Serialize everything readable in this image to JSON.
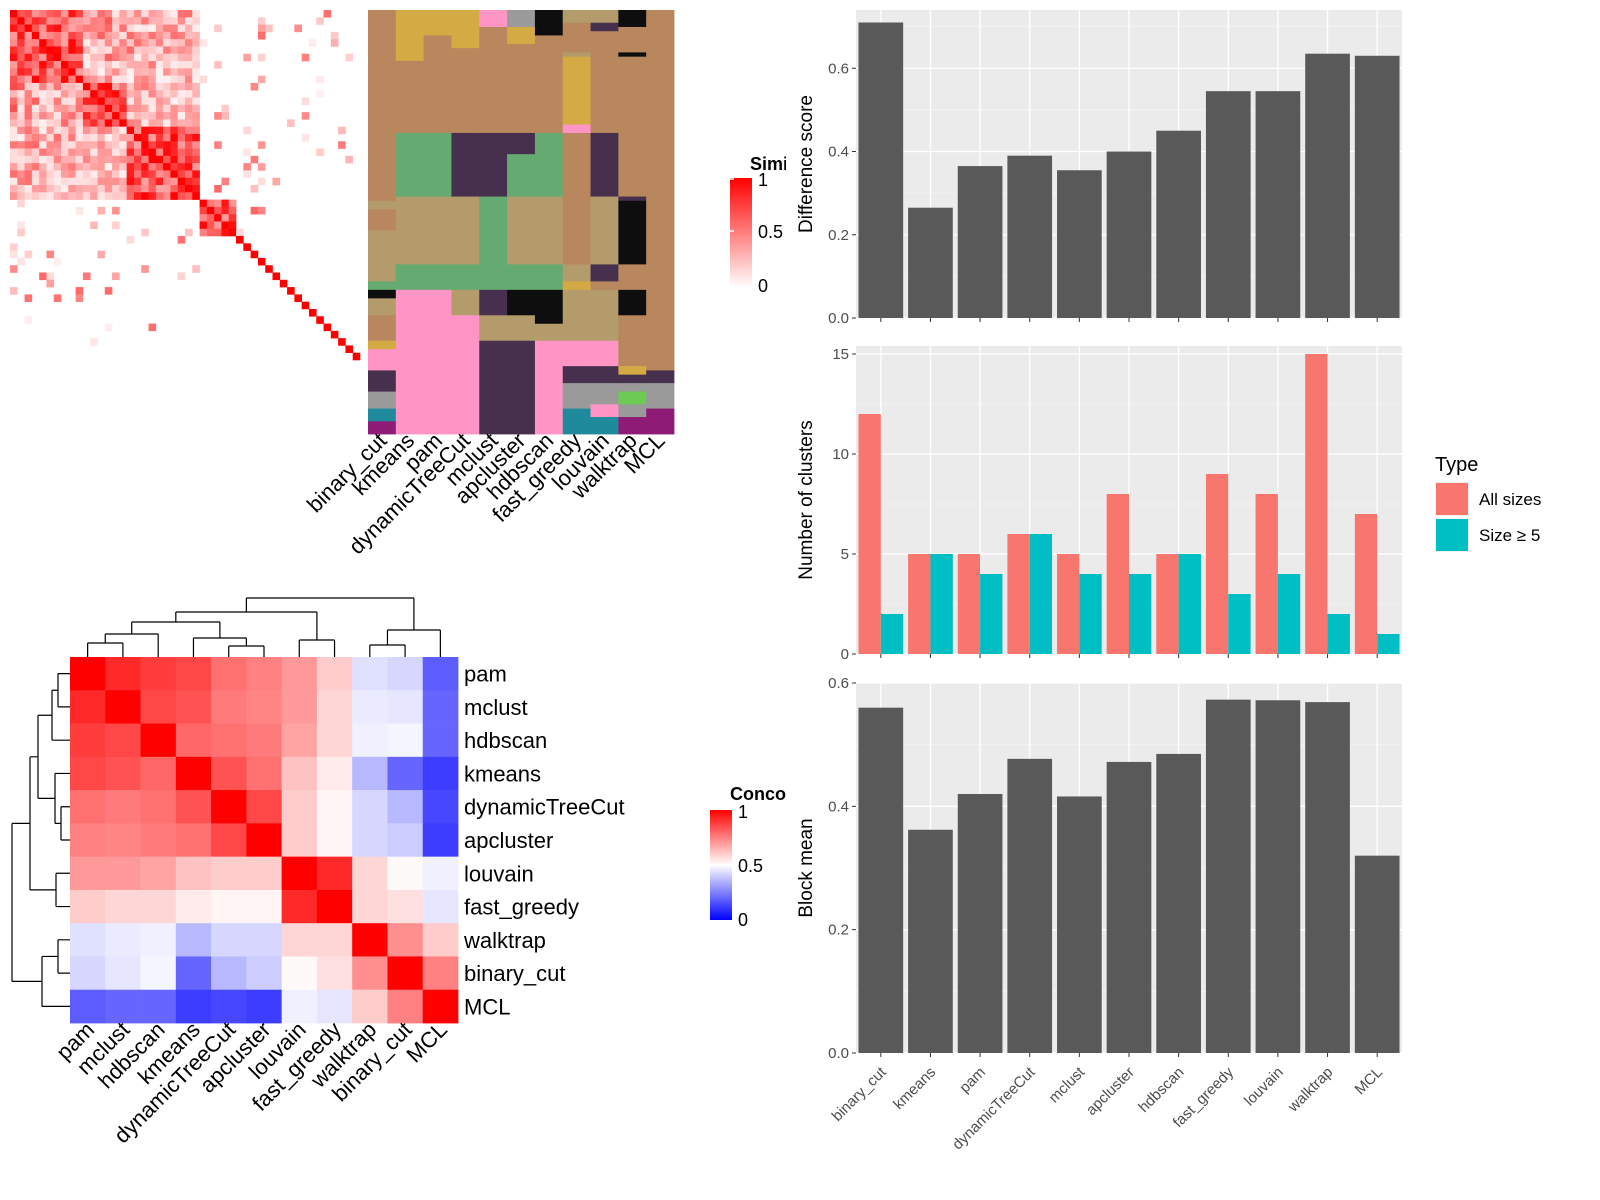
{
  "methods": [
    "binary_cut",
    "kmeans",
    "pam",
    "dynamicTreeCut",
    "mclust",
    "apcluster",
    "hdbscan",
    "fast_greedy",
    "louvain",
    "walktrap",
    "MCL"
  ],
  "similarity_heatmap": {
    "legend_title": "Similarity",
    "legend_ticks": [
      "1",
      "0.5",
      "0"
    ],
    "high_color": "#FF0000",
    "low_color": "#FFFFFF"
  },
  "cluster_assignment": {
    "columns": [
      "binary_cut",
      "kmeans",
      "pam",
      "dynamicTreeCut",
      "mclust",
      "apcluster",
      "hdbscan",
      "fast_greedy",
      "louvain",
      "walktrap",
      "MCL"
    ],
    "colors": {
      "tan": "#B8875E",
      "mustard": "#D4AA45",
      "khaki": "#B39B6B",
      "green": "#65AA71",
      "purple": "#46304D",
      "pink": "#FF95C5",
      "black": "#0E0E0E",
      "gray": "#9A9A9A",
      "teal": "#1E8A9C",
      "magenta": "#8E1C76",
      "lime": "#6BCB53"
    }
  },
  "concordance_heatmap": {
    "legend_title": "Concordance",
    "legend_ticks": [
      "1",
      "0.5",
      "0"
    ],
    "order": [
      "pam",
      "mclust",
      "hdbscan",
      "kmeans",
      "dynamicTreeCut",
      "apcluster",
      "louvain",
      "fast_greedy",
      "walktrap",
      "binary_cut",
      "MCL"
    ],
    "matrix": [
      [
        1.0,
        0.92,
        0.88,
        0.86,
        0.78,
        0.75,
        0.7,
        0.6,
        0.44,
        0.42,
        0.18
      ],
      [
        0.92,
        1.0,
        0.86,
        0.84,
        0.76,
        0.74,
        0.7,
        0.58,
        0.46,
        0.45,
        0.2
      ],
      [
        0.88,
        0.86,
        1.0,
        0.8,
        0.78,
        0.76,
        0.68,
        0.58,
        0.47,
        0.48,
        0.2
      ],
      [
        0.86,
        0.84,
        0.8,
        1.0,
        0.84,
        0.78,
        0.62,
        0.54,
        0.36,
        0.2,
        0.12
      ],
      [
        0.78,
        0.76,
        0.78,
        0.84,
        1.0,
        0.86,
        0.6,
        0.52,
        0.42,
        0.36,
        0.14
      ],
      [
        0.75,
        0.74,
        0.76,
        0.78,
        0.86,
        1.0,
        0.6,
        0.52,
        0.42,
        0.4,
        0.12
      ],
      [
        0.7,
        0.7,
        0.68,
        0.62,
        0.6,
        0.6,
        1.0,
        0.92,
        0.58,
        0.51,
        0.47
      ],
      [
        0.6,
        0.58,
        0.58,
        0.54,
        0.52,
        0.52,
        0.92,
        1.0,
        0.58,
        0.56,
        0.45
      ],
      [
        0.44,
        0.46,
        0.47,
        0.36,
        0.42,
        0.42,
        0.58,
        0.58,
        1.0,
        0.72,
        0.6
      ],
      [
        0.42,
        0.45,
        0.48,
        0.2,
        0.36,
        0.4,
        0.51,
        0.56,
        0.72,
        1.0,
        0.75
      ],
      [
        0.18,
        0.2,
        0.2,
        0.12,
        0.14,
        0.12,
        0.47,
        0.45,
        0.6,
        0.75,
        1.0
      ]
    ],
    "high_color": "#FF0000",
    "mid_color": "#FFFFFF",
    "low_color": "#0000FF"
  },
  "chart_data": [
    {
      "type": "bar",
      "categories": [
        "binary_cut",
        "kmeans",
        "pam",
        "dynamicTreeCut",
        "mclust",
        "apcluster",
        "hdbscan",
        "fast_greedy",
        "louvain",
        "walktrap",
        "MCL"
      ],
      "values": [
        0.71,
        0.265,
        0.365,
        0.39,
        0.355,
        0.4,
        0.45,
        0.545,
        0.545,
        0.635,
        0.63
      ],
      "ylabel": "Difference score",
      "yticks": [
        "0.0",
        "0.2",
        "0.4",
        "0.6"
      ],
      "ylim": [
        0,
        0.74
      ],
      "grid": true
    },
    {
      "type": "bar",
      "categories": [
        "binary_cut",
        "kmeans",
        "pam",
        "dynamicTreeCut",
        "mclust",
        "apcluster",
        "hdbscan",
        "fast_greedy",
        "louvain",
        "walktrap",
        "MCL"
      ],
      "series": [
        {
          "name": "All sizes",
          "color": "#F8766D",
          "values": [
            12,
            5,
            5,
            6,
            5,
            8,
            5,
            9,
            8,
            15,
            7
          ]
        },
        {
          "name": "Size ≥ 5",
          "color": "#00BFC4",
          "values": [
            2,
            5,
            4,
            6,
            4,
            4,
            5,
            3,
            4,
            2,
            1
          ]
        }
      ],
      "ylabel": "Number of clusters",
      "yticks": [
        "0",
        "5",
        "10",
        "15"
      ],
      "ylim": [
        0,
        15.4
      ],
      "legend_title": "Type",
      "legend_position": "right",
      "grid": true
    },
    {
      "type": "bar",
      "categories": [
        "binary_cut",
        "kmeans",
        "pam",
        "dynamicTreeCut",
        "mclust",
        "apcluster",
        "hdbscan",
        "fast_greedy",
        "louvain",
        "walktrap",
        "MCL"
      ],
      "values": [
        0.56,
        0.362,
        0.42,
        0.477,
        0.416,
        0.472,
        0.485,
        0.573,
        0.572,
        0.569,
        0.32
      ],
      "ylabel": "Block mean",
      "yticks": [
        "0.0",
        "0.2",
        "0.4",
        "0.6"
      ],
      "ylim": [
        0,
        0.6
      ],
      "grid": true
    }
  ]
}
